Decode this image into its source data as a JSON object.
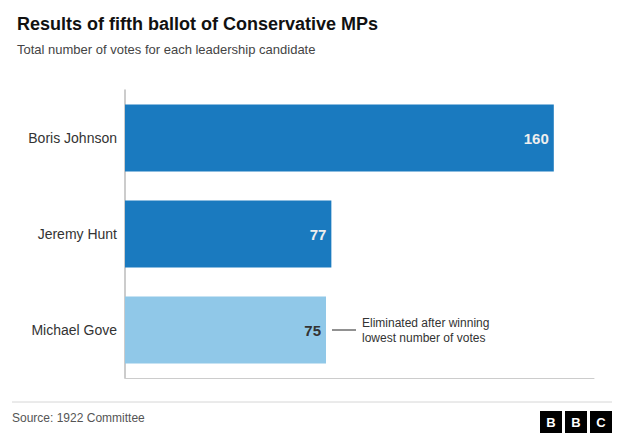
{
  "chart_data": {
    "type": "bar",
    "orientation": "horizontal",
    "title": "Results of fifth ballot of Conservative MPs",
    "subtitle": "Total number of votes for each leadership candidate",
    "categories": [
      "Boris Johnson",
      "Jeremy Hunt",
      "Michael Gove"
    ],
    "values": [
      160,
      77,
      75
    ],
    "colors": [
      "#1a7abf",
      "#1a7abf",
      "#90c8e8"
    ],
    "xlim": [
      0,
      175
    ],
    "data_labels": true,
    "tick_labels": "y",
    "grid": false,
    "annotations": [
      {
        "text": "Eliminated after winning\nlowest number of votes",
        "category": "Michael Gove"
      }
    ],
    "source": "Source: 1922 Committee",
    "logo": "BBC"
  }
}
